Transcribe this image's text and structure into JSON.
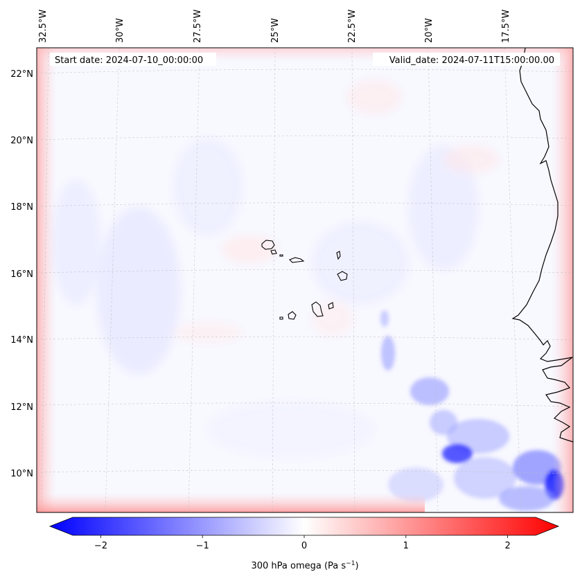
{
  "header": {
    "start_label": "Start date: 2024-07-10_00:00:00",
    "valid_label": "Valid_date: 2024-07-11T15:00:00.00"
  },
  "lon_labels": [
    "32.5°W",
    "30°W",
    "27.5°W",
    "25°W",
    "22.5°W",
    "20°W",
    "17.5°W"
  ],
  "lat_labels": [
    "22°N",
    "20°N",
    "18°N",
    "16°N",
    "14°N",
    "12°N",
    "10°N"
  ],
  "colorbar": {
    "title": "300 hPa omega (Pa s",
    "title_sup": "−1",
    "title_end": ")",
    "ticks": [
      "−2",
      "−1",
      "0",
      "1",
      "2"
    ],
    "vmin": -2.5,
    "vmax": 2.5,
    "tick_values": [
      -2,
      -1,
      0,
      1,
      2
    ],
    "colors": {
      "neg": "#0000ff",
      "mid": "#ffffff",
      "pos": "#ff0000"
    }
  }
}
